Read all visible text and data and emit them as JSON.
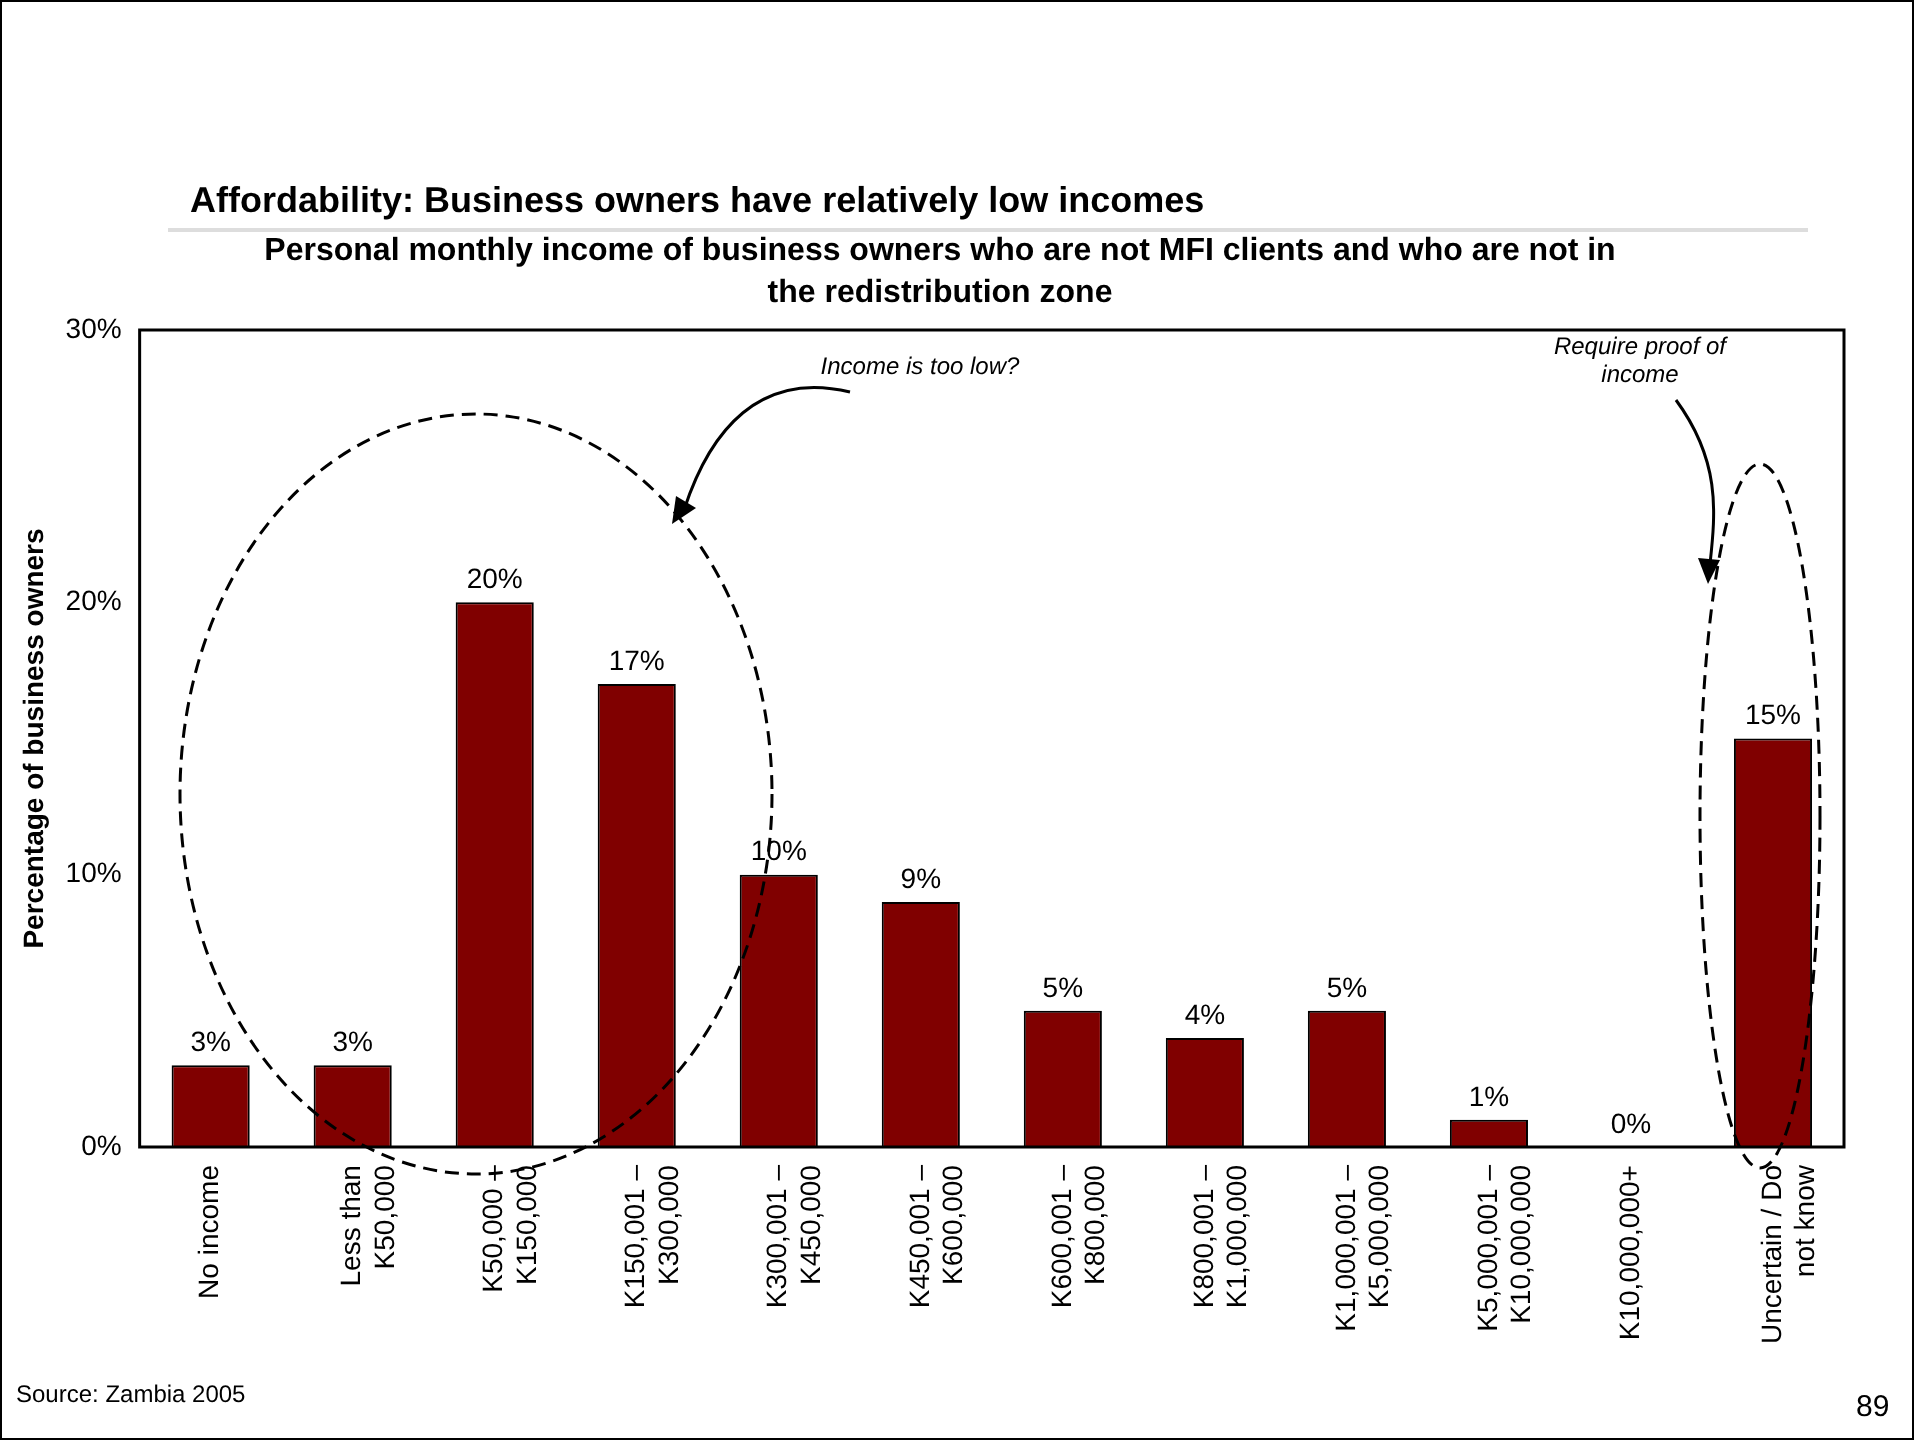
{
  "chart_data": {
    "type": "bar",
    "title": "Affordability: Business owners have relatively low incomes",
    "subtitle": "Personal monthly income of business owners who are not MFI clients and who are not in the redistribution zone",
    "ylabel": "Percentage of business owners",
    "categories": [
      "No income",
      "Less than K50,000",
      "K50,000 – K150,000",
      "K150,001 – K300,000",
      "K300,001 – K450,000",
      "K450,001 – K600,000",
      "K600,001 – K800,000",
      "K800,001 – K1,000,000",
      "K1,000,001 – K5,000,000",
      "K5,000,001 – K10,000,000",
      "K10,000,000+",
      "Uncertain / Do not know"
    ],
    "values": [
      3,
      3,
      20,
      17,
      10,
      9,
      5,
      4,
      5,
      1,
      0,
      15
    ],
    "color": "#800000",
    "ylim": [
      0,
      30
    ],
    "yticks": [
      {
        "value": 0,
        "label": "0%"
      },
      {
        "value": 10,
        "label": "10%"
      },
      {
        "value": 20,
        "label": "20%"
      },
      {
        "value": 30,
        "label": "30%"
      }
    ],
    "value_labels": [
      "3%",
      "3%",
      "20%",
      "17%",
      "10%",
      "9%",
      "5%",
      "4%",
      "5%",
      "1%",
      "0%",
      "15%"
    ],
    "grid": false,
    "legend": false,
    "annotations": [
      "Income is too low?",
      "Require proof of income",
      "Source: Zambia 2005",
      "89"
    ]
  }
}
